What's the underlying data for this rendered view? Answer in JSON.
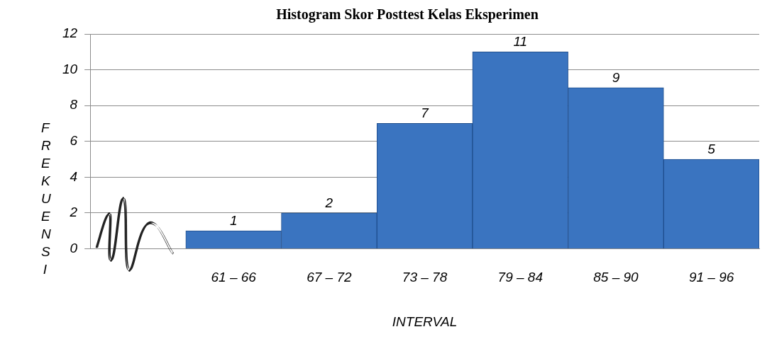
{
  "chart_data": {
    "type": "bar",
    "title": "Histogram Skor Posttest Kelas Eksperimen",
    "xlabel": "INTERVAL",
    "ylabel": "FREKUENSI",
    "categories": [
      null,
      "61 – 66",
      "67 – 72",
      "73 – 78",
      "79 – 84",
      "85 – 90",
      "91 – 96"
    ],
    "values": [
      null,
      1,
      2,
      7,
      11,
      9,
      5
    ],
    "color": "#3a74c0",
    "ylim": [
      0,
      12
    ],
    "yticks": [
      0,
      2,
      4,
      6,
      8,
      10,
      12
    ],
    "grid": "y",
    "data_labels": true,
    "legend": false
  }
}
